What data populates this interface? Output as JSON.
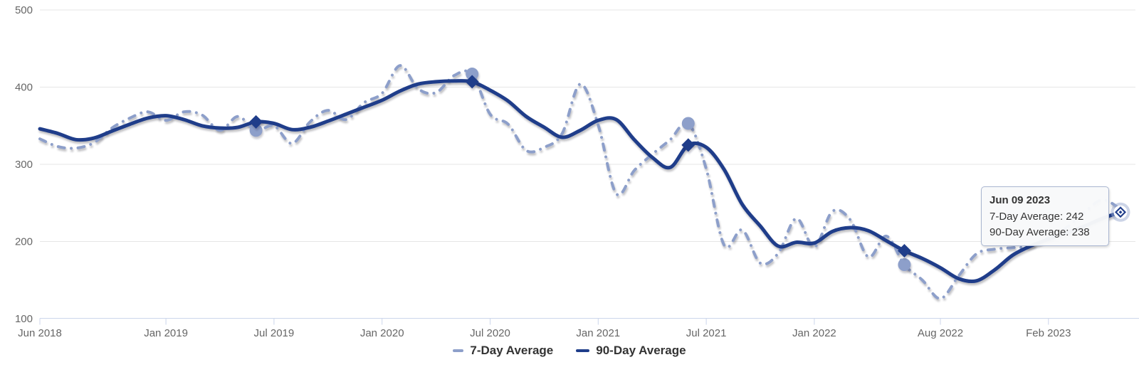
{
  "chart_data": {
    "type": "line",
    "title": "",
    "x_axis": {
      "start": "Jun 2018",
      "end": "Jun 2023",
      "interval": "monthly",
      "ticks": [
        {
          "label": "Jun 2018",
          "index": 0
        },
        {
          "label": "Jan 2019",
          "index": 7
        },
        {
          "label": "Jul 2019",
          "index": 13
        },
        {
          "label": "Jan 2020",
          "index": 19
        },
        {
          "label": "Jul 2020",
          "index": 25
        },
        {
          "label": "Jan 2021",
          "index": 31
        },
        {
          "label": "Jul 2021",
          "index": 37
        },
        {
          "label": "Jan 2022",
          "index": 43
        },
        {
          "label": "Aug 2022",
          "index": 50
        },
        {
          "label": "Feb 2023",
          "index": 56
        }
      ]
    },
    "y_axis": {
      "min": 100,
      "max": 500,
      "ticks": [
        100,
        200,
        300,
        400,
        500
      ]
    },
    "grid": "horizontal",
    "legend_position": "bottom-center",
    "series": [
      {
        "name": "7-Day Average",
        "color": "#8d9fca",
        "style": "dash-dot",
        "line_width": 4,
        "marker": "circle",
        "values": [
          333,
          323,
          321,
          328,
          347,
          360,
          368,
          357,
          368,
          364,
          344,
          362,
          344,
          350,
          327,
          355,
          370,
          358,
          380,
          392,
          428,
          398,
          393,
          415,
          417,
          365,
          352,
          318,
          322,
          340,
          404,
          351,
          262,
          292,
          313,
          332,
          353,
          294,
          195,
          215,
          172,
          185,
          230,
          193,
          239,
          228,
          180,
          207,
          170,
          150,
          126,
          155,
          184,
          190,
          192,
          194,
          205,
          218,
          238,
          254,
          242
        ]
      },
      {
        "name": "90-Day Average",
        "color": "#1f3d8a",
        "style": "solid",
        "line_width": 5,
        "marker": "diamond",
        "values": [
          346,
          340,
          332,
          334,
          343,
          352,
          360,
          363,
          358,
          350,
          347,
          348,
          355,
          353,
          345,
          348,
          356,
          365,
          374,
          383,
          395,
          404,
          407,
          408,
          407,
          396,
          382,
          362,
          348,
          335,
          344,
          357,
          358,
          332,
          309,
          296,
          325,
          322,
          293,
          248,
          220,
          194,
          199,
          198,
          213,
          218,
          214,
          201,
          188,
          178,
          166,
          152,
          149,
          163,
          182,
          194,
          203,
          211,
          220,
          230,
          238
        ]
      }
    ],
    "annual_marker_indices": [
      12,
      24,
      36,
      48
    ],
    "active_point": {
      "index": 60,
      "label": "Jun 09 2023",
      "series7_value": 242,
      "series90_value": 238
    }
  },
  "tooltip": {
    "title": "Jun 09 2023",
    "line1": "7-Day Average: 242",
    "line2": "90-Day Average: 238"
  },
  "colors": {
    "series7": "#8d9fca",
    "series90": "#1f3d8a",
    "grid_line": "#e6e6e6",
    "axis_line": "#ccd6eb",
    "axis_text": "#666666",
    "legend_text": "#333333",
    "tooltip_bg": "#f8f9fa",
    "tooltip_border": "#a9b6d0",
    "halo": "#9aa9d0"
  }
}
